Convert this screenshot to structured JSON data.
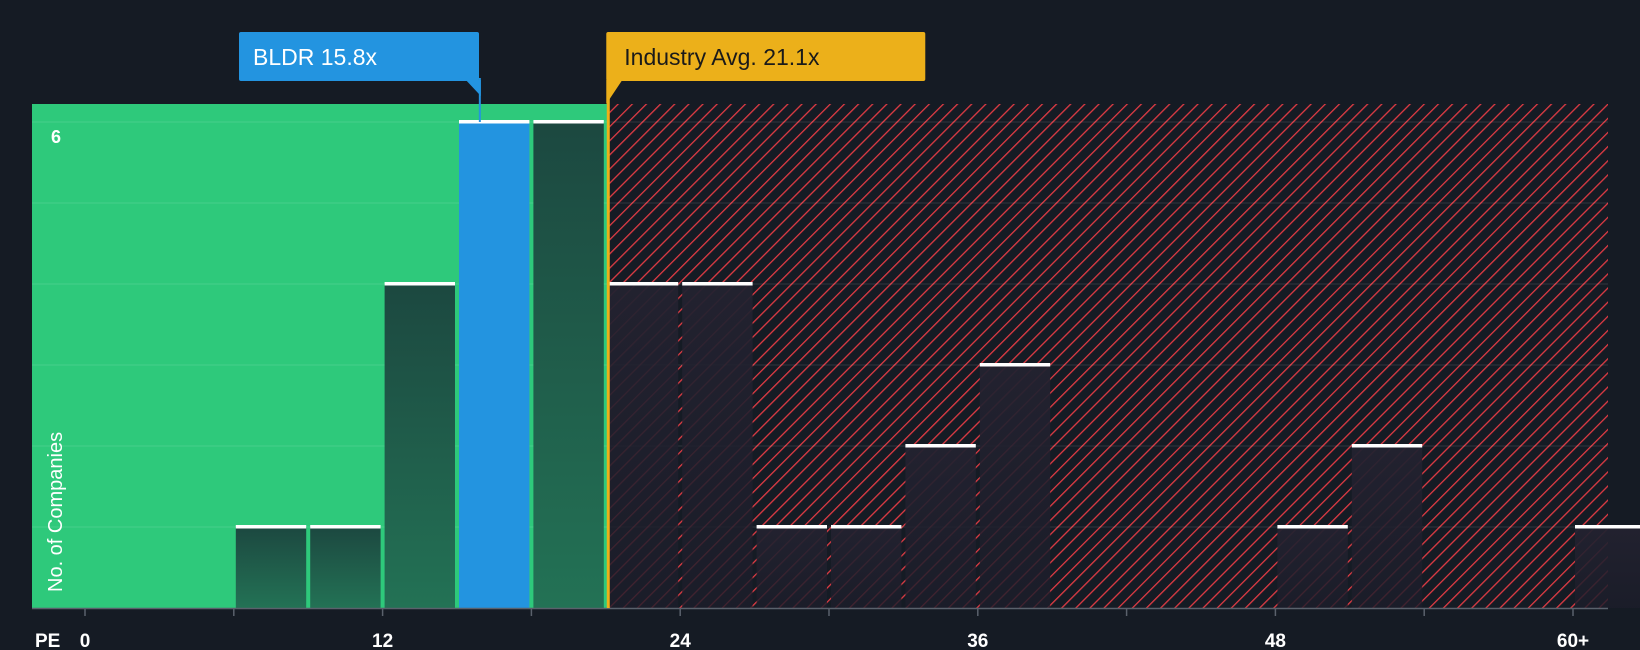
{
  "chart_data": {
    "type": "bar",
    "title": "",
    "xlabel": "PE",
    "ylabel": "No. of Companies",
    "x_ticks": [
      "0",
      "12",
      "24",
      "36",
      "48",
      "60+"
    ],
    "y_ticks": [
      "6"
    ],
    "ylim": [
      0,
      6.25
    ],
    "xlim": [
      -2,
      61.5
    ],
    "bin_width": 3,
    "bins": [
      {
        "x0": 6,
        "value": 1
      },
      {
        "x0": 9,
        "value": 1
      },
      {
        "x0": 12,
        "value": 4
      },
      {
        "x0": 15,
        "value": 6,
        "highlight": true
      },
      {
        "x0": 18,
        "value": 6
      },
      {
        "x0": 21,
        "value": 4
      },
      {
        "x0": 24,
        "value": 4
      },
      {
        "x0": 27,
        "value": 1
      },
      {
        "x0": 30,
        "value": 1
      },
      {
        "x0": 33,
        "value": 2
      },
      {
        "x0": 36,
        "value": 3
      },
      {
        "x0": 48,
        "value": 1
      },
      {
        "x0": 51,
        "value": 2
      },
      {
        "x0": 60,
        "value": 1
      }
    ],
    "company": {
      "label": "BLDR 15.8x",
      "value": 15.8,
      "color": "#2394e0"
    },
    "industry": {
      "label": "Industry Avg. 21.1x",
      "value": 21.1,
      "color": "#ecb01a"
    },
    "undervalued_color": "#2ec97b",
    "overvalued_color": "#e03b44",
    "grid": true
  }
}
